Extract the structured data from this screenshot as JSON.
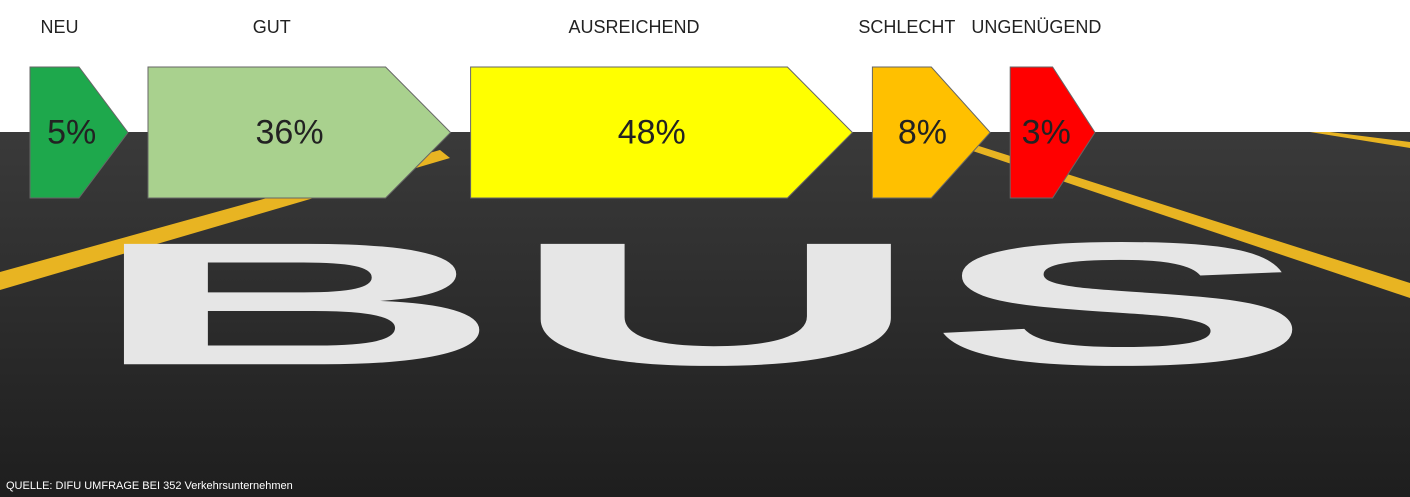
{
  "chart_data": {
    "type": "arrow-bar",
    "categories": [
      "NEU",
      "GUT",
      "AUSREICHEND",
      "SCHLECHT",
      "UNGENÜGEND"
    ],
    "values": [
      5,
      36,
      48,
      8,
      3
    ],
    "value_labels": [
      "5%",
      "36%",
      "48%",
      "8%",
      "3%"
    ],
    "colors": [
      "#1ea84c",
      "#a9d18e",
      "#ffff00",
      "#ffc000",
      "#ff0000"
    ],
    "source": "QUELLE:  DIFU UMFRAGE  BEI 352 Verkehrsunternehmen"
  }
}
